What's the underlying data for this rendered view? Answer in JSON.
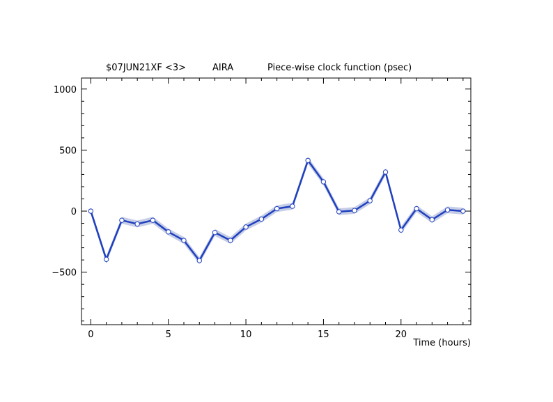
{
  "chart_data": {
    "type": "line",
    "title_left": "$07JUN21XF <3>",
    "title_station": "AIRA",
    "title_right": "Piece-wise clock function (psec)",
    "xlabel": "Time (hours)",
    "ylabel": "",
    "xlim": [
      -0.6,
      24.5
    ],
    "ylim": [
      -930,
      1090
    ],
    "x_ticks": [
      0,
      5,
      10,
      15,
      20
    ],
    "y_ticks": [
      1000,
      500,
      0,
      -500
    ],
    "grid": false,
    "band_halfwidth": 28,
    "series": [
      {
        "x": [
          0,
          1,
          2,
          3,
          4,
          5,
          6,
          7,
          8,
          9,
          10,
          11,
          12,
          13,
          14,
          15,
          16,
          17,
          18,
          19,
          20,
          21,
          22,
          23,
          24
        ],
        "values": [
          0,
          -395,
          -75,
          -105,
          -75,
          -170,
          -240,
          -405,
          -175,
          -240,
          -130,
          -65,
          20,
          40,
          415,
          240,
          -5,
          5,
          85,
          320,
          -155,
          20,
          -70,
          10,
          0
        ],
        "errors": [
          22,
          25,
          15,
          15,
          15,
          15,
          15,
          20,
          15,
          15,
          15,
          15,
          15,
          15,
          20,
          15,
          15,
          15,
          15,
          20,
          15,
          15,
          15,
          15,
          15
        ]
      }
    ],
    "colors": {
      "line": "#1f3fbf",
      "band": "#b3bedd",
      "marker_fill": "#ffffff"
    }
  }
}
